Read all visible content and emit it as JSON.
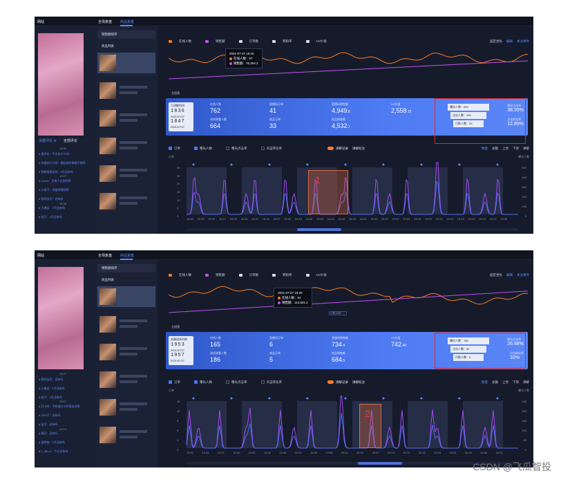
{
  "screens": [
    {
      "brand": "网站",
      "tabs": [
        "全场复盘",
        "商品复盘"
      ],
      "sidebar_toggle": [
        "关键评论 ⚙",
        "全部评论"
      ],
      "sidebar_times": [
        "18:40",
        "19:27",
        "19:36"
      ],
      "sidebar_rows": [
        "● 看评价：今天有什么吗?",
        "● 你喜欢什么呢：看起来好像都不错啊",
        "● 我都挺想买的：5号还有吗",
        "● Carrie：买哪个比较好啊",
        "● 小虎子：你推荐哪款啊",
        "● 我的宝贝：还有吗",
        "● 大美女：1号还有吗",
        "● 花开：1号还有吗"
      ],
      "mid_header": "销售额排序",
      "mid_sub": "商品列表",
      "legend": [
        "在线人数",
        "销售额",
        "订单数",
        "转粉率",
        "UV价值"
      ],
      "right_top": [
        "固定坐标",
        "编辑",
        "关注事件"
      ],
      "tooltip": {
        "time": "2021-07-27 18:16",
        "online": "在线人数：97",
        "sales": "销售额：76,364.2"
      },
      "chart1_label": "主段落",
      "clock": {
        "label": "已讲解时间",
        "time1": "1836",
        "date1": "2021/07/27",
        "time2": "1847",
        "date2": "2021/07/27"
      },
      "kpis": [
        {
          "label": "在线人数",
          "value": "762",
          "small": ""
        },
        {
          "label": "直播间订单",
          "value": "41",
          "small": ""
        },
        {
          "label": "直播间销售额",
          "value": "4,949",
          "small": ".8"
        },
        {
          "label": "UV价值",
          "value": "2,558",
          "small": ".15"
        },
        {
          "label": "进线观看人数",
          "value": "664",
          "small": ""
        },
        {
          "label": "商品订单",
          "value": "33",
          "small": ""
        },
        {
          "label": "商品销售额",
          "value": "4,532",
          "small": ".7"
        }
      ],
      "funnel": [
        {
          "text": "曝光人数：664"
        },
        {
          "text": "点击人数：256"
        },
        {
          "text": "付款人数：33"
        }
      ],
      "funnel_rates": [
        {
          "label": "曝光点击率",
          "value": "38.55%"
        },
        {
          "label": "点击转化率",
          "value": "12.89%"
        }
      ],
      "controls": [
        "订单",
        "曝光人数",
        "曝光点击率",
        "点击转化率"
      ],
      "toggle_label": "讲解记录",
      "toggle_label2": "讲解标注",
      "right_ctrl": [
        "数量",
        "总额",
        "上架",
        "下架",
        "讲解"
      ],
      "axis_left_title": "订单",
      "axis_right_title": "曝光人数",
      "y_left": [
        "30",
        "25",
        "20",
        "15",
        "10",
        "5",
        "0"
      ],
      "y_right": [
        "500",
        "400",
        "300",
        "200",
        "100",
        "0"
      ],
      "x_ticks": [
        "18:03",
        "18:06",
        "18:09",
        "18:12",
        "18:15",
        "18:18",
        "18:21",
        "18:24",
        "18:27",
        "18:30",
        "18:33",
        "18:36",
        "18:39",
        "18:42",
        "18:45",
        "18:48",
        "18:51",
        "18:54",
        "18:57",
        "19:00",
        "19:03",
        "19:06",
        "19:09",
        "19:12",
        "19:15",
        "19:18",
        "19:21",
        "19:24",
        "19:27",
        "19:30"
      ],
      "mark_number": "1"
    },
    {
      "brand": "网站",
      "tabs": [
        "全场复盘",
        "商品复盘"
      ],
      "sidebar_toggle": [
        "",
        ""
      ],
      "sidebar_times": [
        "19:27",
        "20:07",
        "20:10"
      ],
      "sidebar_rows": [
        "● 我的宝贝：还有吗",
        "● 小美女：1号还有吗",
        "● 花开：1号还有吗",
        "● 打卡吗：不知道什么时候有货啊",
        "● 小叶子：还有吗",
        "● 宝贝：还有吗",
        "● 晴天：还有吗",
        "● 爱购物：1号还有吗",
        "● 1_Mirror：今天还有吗"
      ],
      "mid_header": "销售额排序",
      "mid_sub": "商品列表",
      "legend": [
        "在线人数",
        "销售额",
        "订单数",
        "转粉率",
        "UV价值"
      ],
      "right_top": [
        "固定坐标",
        "编辑",
        "关注事件"
      ],
      "tooltip": {
        "time": "2021-07-27 19:20",
        "online": "在线人数：61",
        "sales": "销售额：112,501.4"
      },
      "chart1_label": "主段落",
      "pin_label": "订单:1000",
      "clock": {
        "label": "关键进场时刻",
        "time1": "1953",
        "date1": "2021/07/27",
        "time2": "1957",
        "date2": "2021/07/27"
      },
      "kpis": [
        {
          "label": "在线人数",
          "value": "165",
          "small": ""
        },
        {
          "label": "直播间订单",
          "value": "6",
          "small": ""
        },
        {
          "label": "直播间销售额",
          "value": "734",
          "small": ".4"
        },
        {
          "label": "UV价值",
          "value": "742",
          "small": ".40"
        },
        {
          "label": "进线观看人数",
          "value": "186",
          "small": ""
        },
        {
          "label": "商品订单",
          "value": "5",
          "small": ""
        },
        {
          "label": "商品销售额",
          "value": "684",
          "small": ".5"
        }
      ],
      "funnel": [
        {
          "text": "曝光人数：186"
        },
        {
          "text": "点击人数：50"
        },
        {
          "text": "付款人数：5"
        }
      ],
      "funnel_rates": [
        {
          "label": "曝光点击率",
          "value": "26.88%"
        },
        {
          "label": "点击转化率",
          "value": "10%"
        }
      ],
      "controls": [
        "订单",
        "曝光人数",
        "曝光点击率",
        "点击转化率"
      ],
      "toggle_label": "讲解记录",
      "toggle_label2": "讲解标注",
      "right_ctrl": [
        "数量",
        "总额",
        "上架",
        "下架",
        "讲解"
      ],
      "axis_left_title": "订单",
      "axis_right_title": "曝光人数",
      "y_left": [
        "15",
        "12",
        "9",
        "6",
        "3",
        "0"
      ],
      "y_right": [
        "250",
        "200",
        "150",
        "100",
        "50",
        "0"
      ],
      "x_ticks": [
        "19:31",
        "19:34",
        "19:37",
        "19:40",
        "19:43",
        "19:46",
        "19:49",
        "19:52",
        "19:55",
        "19:58",
        "20:01",
        "20:04",
        "20:07",
        "20:10",
        "20:13",
        "20:16",
        "20:19",
        "20:22",
        "20:25",
        "20:28",
        "20:31"
      ],
      "mark_number": "2"
    }
  ],
  "watermark": "CSDN @飞瓜智投",
  "colors": {
    "online": "#ff7a1a",
    "sales": "#c452f0",
    "kpi": "#4b77f0",
    "highlight": "#e0252b"
  }
}
